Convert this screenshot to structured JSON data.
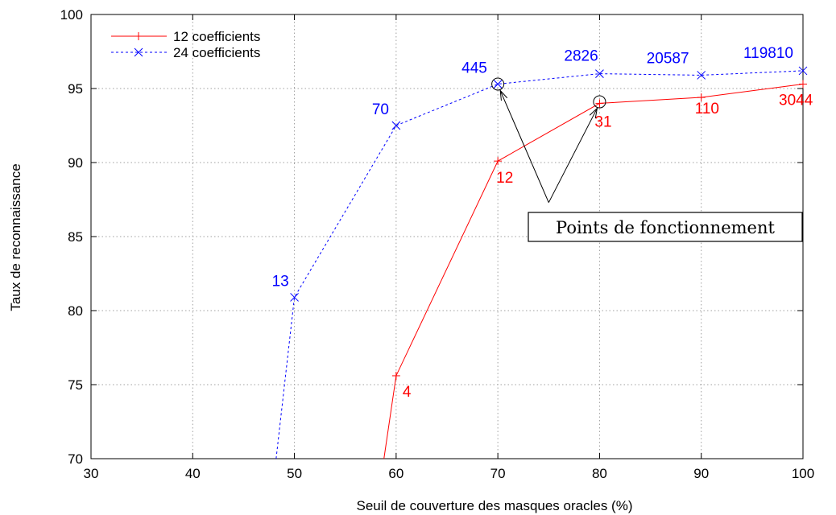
{
  "chart_data": {
    "type": "line",
    "xlabel": "Seuil de couverture des masques oracles (%)",
    "ylabel": "Taux de reconnaissance",
    "xlim": [
      30,
      100
    ],
    "ylim": [
      70,
      100
    ],
    "xticks": [
      "30",
      "40",
      "50",
      "60",
      "70",
      "80",
      "90",
      "100"
    ],
    "yticks": [
      "70",
      "75",
      "80",
      "85",
      "90",
      "95",
      "100"
    ],
    "grid": true,
    "legend_position": "top-left",
    "series": [
      {
        "name": "12 coefficients",
        "color": "#ff0000",
        "line_style": "solid",
        "marker": "plus",
        "x": [
          58.8,
          60,
          70,
          80,
          90,
          100
        ],
        "y": [
          70,
          75.6,
          90.1,
          94.0,
          94.4,
          95.3
        ],
        "labels": [
          "",
          "4",
          "12",
          "31",
          "110",
          "3044"
        ]
      },
      {
        "name": "24 coefficients",
        "color": "#0000ff",
        "line_style": "dashed",
        "marker": "cross",
        "x": [
          48.2,
          50,
          60,
          70,
          80,
          90,
          100
        ],
        "y": [
          70,
          80.9,
          92.5,
          95.3,
          96.0,
          95.9,
          96.2
        ],
        "labels": [
          "",
          "13",
          "70",
          "445",
          "2826",
          "20587",
          "119810"
        ]
      }
    ],
    "annotation": {
      "text": "Points de fonctionnement",
      "anchor": [
        75,
        87.3
      ],
      "targets": [
        [
          70,
          95.3
        ],
        [
          80,
          94.1
        ]
      ]
    }
  }
}
